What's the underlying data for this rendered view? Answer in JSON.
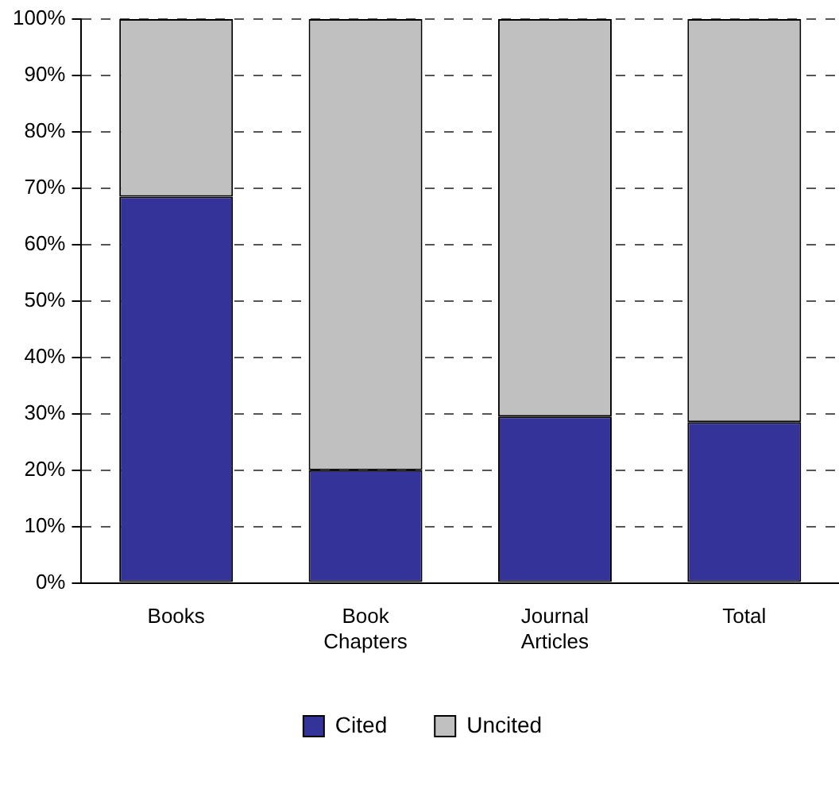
{
  "chart_data": {
    "type": "bar",
    "stacked": true,
    "categories": [
      "Books",
      "Book Chapters",
      "Journal Articles",
      "Total"
    ],
    "series": [
      {
        "name": "Cited",
        "color": "#333399",
        "values": [
          68.5,
          20,
          29.5,
          28.5
        ]
      },
      {
        "name": "Uncited",
        "color": "#c0c0c0",
        "values": [
          31.5,
          80,
          70.5,
          71.5
        ]
      }
    ],
    "ylim": [
      0,
      100
    ],
    "yticks": [
      {
        "value": 0,
        "label": "0%"
      },
      {
        "value": 10,
        "label": "10%"
      },
      {
        "value": 20,
        "label": "20%"
      },
      {
        "value": 30,
        "label": "30%"
      },
      {
        "value": 40,
        "label": "40%"
      },
      {
        "value": 50,
        "label": "50%"
      },
      {
        "value": 60,
        "label": "60%"
      },
      {
        "value": 70,
        "label": "70%"
      },
      {
        "value": 80,
        "label": "80%"
      },
      {
        "value": 90,
        "label": "90%"
      },
      {
        "value": 100,
        "label": "100%"
      }
    ],
    "grid": "y",
    "legend": "bottom"
  }
}
